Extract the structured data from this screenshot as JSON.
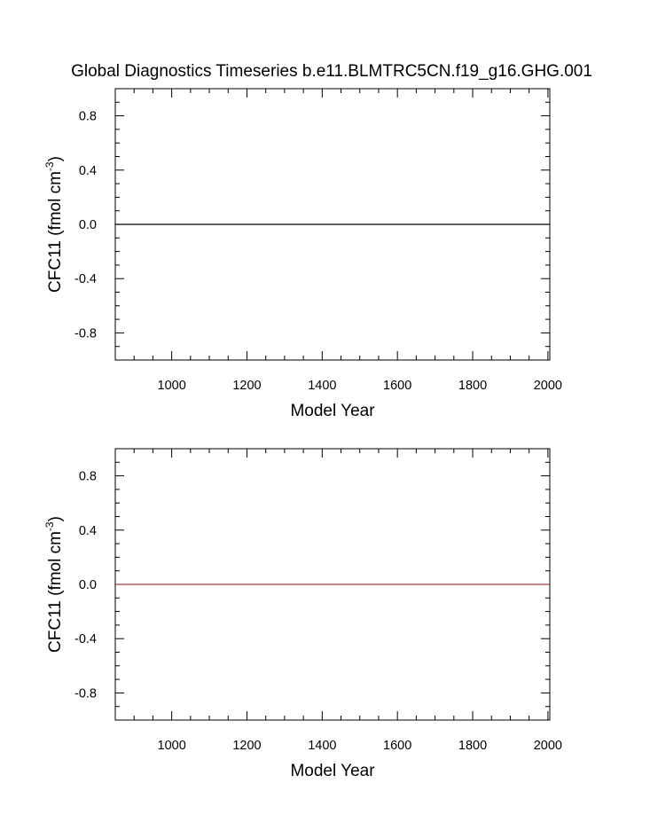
{
  "chart_data": [
    {
      "type": "line",
      "title": "Global Diagnostics Timeseries b.e11.BLMTRC5CN.f19_g16.GHG.001",
      "xlabel": "Model Year",
      "ylabel": "CFC11 (fmol cm",
      "ylabel_sup": "-3",
      "ylabel_end": ")",
      "xlim": [
        850,
        2005
      ],
      "ylim": [
        -1.0,
        1.0
      ],
      "xticks": [
        1000,
        1200,
        1400,
        1600,
        1800,
        2000
      ],
      "xtick_labels": [
        "1000",
        "1200",
        "1400",
        "1600",
        "1800",
        "2000"
      ],
      "yticks": [
        0.8,
        0.4,
        0.0,
        -0.4,
        -0.8
      ],
      "ytick_labels": [
        "0.8",
        "0.4",
        "0.0",
        "-0.4",
        "-0.8"
      ],
      "grid": false,
      "series": [
        {
          "color": "#000000",
          "x": [
            850,
            2005
          ],
          "y": [
            0.0,
            0.0
          ]
        }
      ]
    },
    {
      "type": "line",
      "title": "",
      "xlabel": "Model Year",
      "ylabel": "CFC11 (fmol cm",
      "ylabel_sup": "-3",
      "ylabel_end": ")",
      "xlim": [
        850,
        2005
      ],
      "ylim": [
        -1.0,
        1.0
      ],
      "xticks": [
        1000,
        1200,
        1400,
        1600,
        1800,
        2000
      ],
      "xtick_labels": [
        "1000",
        "1200",
        "1400",
        "1600",
        "1800",
        "2000"
      ],
      "yticks": [
        0.8,
        0.4,
        0.0,
        -0.4,
        -0.8
      ],
      "ytick_labels": [
        "0.8",
        "0.4",
        "0.0",
        "-0.4",
        "-0.8"
      ],
      "grid": false,
      "series": [
        {
          "color": "#a04040",
          "x": [
            850,
            2005
          ],
          "y": [
            0.0,
            0.0
          ]
        }
      ]
    }
  ]
}
